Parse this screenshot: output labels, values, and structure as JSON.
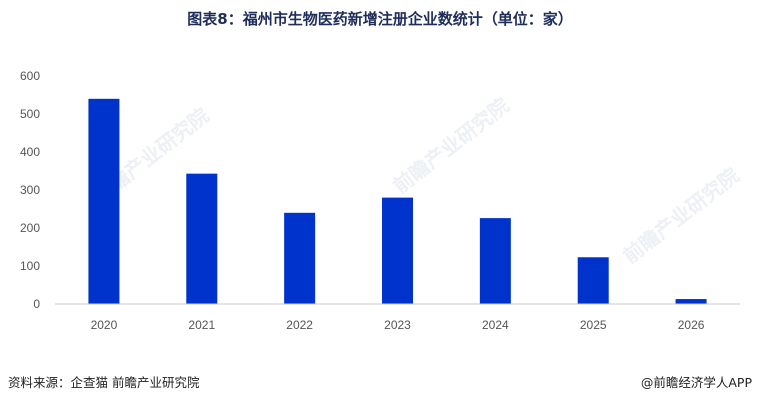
{
  "chart_data": {
    "type": "bar",
    "title": "图表8：福州市生物医药新增注册企业数统计（单位：家）",
    "categories": [
      "2020",
      "2021",
      "2022",
      "2023",
      "2024",
      "2025",
      "2026"
    ],
    "values": [
      540,
      343,
      240,
      280,
      226,
      123,
      13
    ],
    "ylim": [
      0,
      600
    ],
    "yticks": [
      0,
      100,
      200,
      300,
      400,
      500,
      600
    ],
    "bar_color": "#0033cc",
    "grid": false,
    "legend": "none"
  },
  "footer": {
    "source": "资料来源：企查猫 前瞻产业研究院",
    "brand": "@前瞻经济学人APP"
  },
  "watermark": {
    "text": "前瞻产业研究院"
  }
}
